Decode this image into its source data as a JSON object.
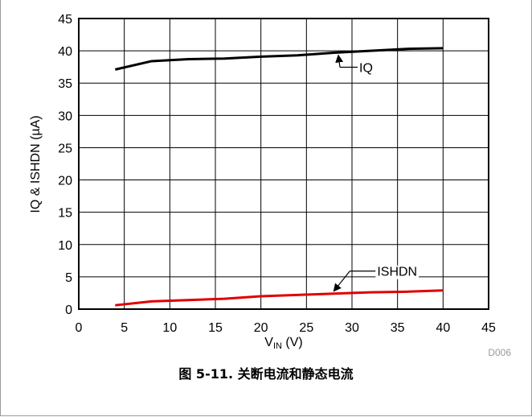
{
  "chart_data": {
    "type": "line",
    "xlabel": "V",
    "xlabel_sub": "IN",
    "xlabel_unit": " (V)",
    "ylabel": "IQ & ISHDN (µA)",
    "xlim": [
      0,
      45
    ],
    "ylim": [
      0,
      45
    ],
    "xticks": [
      "0",
      "5",
      "10",
      "15",
      "20",
      "25",
      "30",
      "35",
      "40",
      "45"
    ],
    "yticks": [
      "0",
      "5",
      "10",
      "15",
      "20",
      "25",
      "30",
      "35",
      "40",
      "45"
    ],
    "grid": true,
    "series": [
      {
        "name": "IQ",
        "color": "#000000",
        "x": [
          4,
          8,
          12,
          16,
          20,
          24,
          28,
          32,
          36,
          40
        ],
        "y": [
          37.1,
          38.4,
          38.7,
          38.8,
          39.1,
          39.3,
          39.7,
          40.0,
          40.3,
          40.4
        ]
      },
      {
        "name": "ISHDN",
        "color": "#e00000",
        "x": [
          4,
          8,
          12,
          16,
          20,
          24,
          28,
          32,
          36,
          40
        ],
        "y": [
          0.6,
          1.2,
          1.4,
          1.6,
          2.0,
          2.2,
          2.4,
          2.6,
          2.7,
          2.9
        ]
      }
    ],
    "annotations": [
      {
        "text": "IQ",
        "x": 28.5,
        "y": 39.7
      },
      {
        "text": "ISHDN",
        "x": 28.0,
        "y": 2.4
      }
    ],
    "figure_code": "D006"
  },
  "caption": "图 5-11. 关断电流和静态电流"
}
